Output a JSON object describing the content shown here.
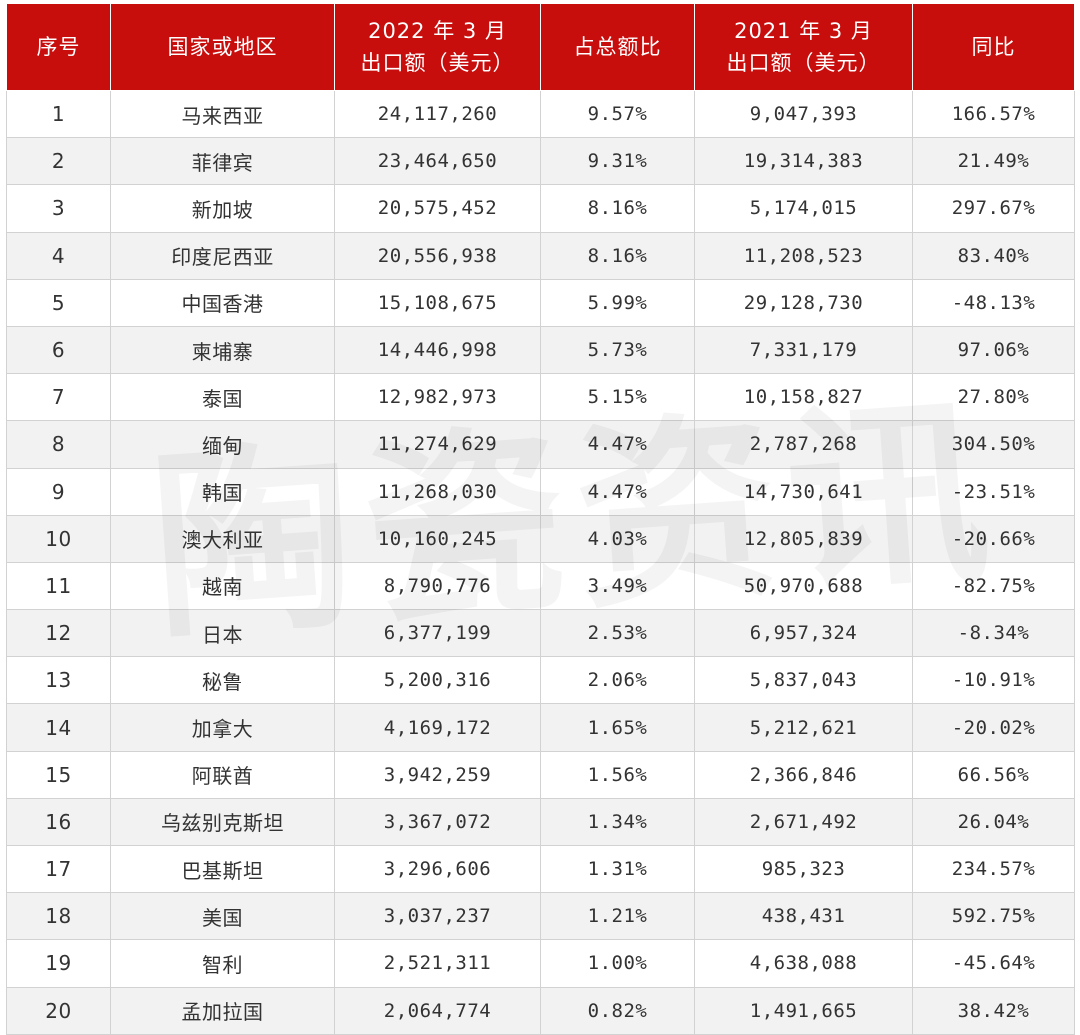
{
  "table": {
    "headers": {
      "rank": "序号",
      "country": "国家或地区",
      "export_2022_line1": "2022 年 3 月",
      "export_2022_line2": "出口额（美元）",
      "share": "占总额比",
      "export_2021_line1": "2021 年 3 月",
      "export_2021_line2": "出口额（美元）",
      "yoy": "同比"
    },
    "rows": [
      {
        "rank": "1",
        "country": "马来西亚",
        "export_2022": "24,117,260",
        "share": "9.57%",
        "export_2021": "9,047,393",
        "yoy": "166.57%"
      },
      {
        "rank": "2",
        "country": "菲律宾",
        "export_2022": "23,464,650",
        "share": "9.31%",
        "export_2021": "19,314,383",
        "yoy": "21.49%"
      },
      {
        "rank": "3",
        "country": "新加坡",
        "export_2022": "20,575,452",
        "share": "8.16%",
        "export_2021": "5,174,015",
        "yoy": "297.67%"
      },
      {
        "rank": "4",
        "country": "印度尼西亚",
        "export_2022": "20,556,938",
        "share": "8.16%",
        "export_2021": "11,208,523",
        "yoy": "83.40%"
      },
      {
        "rank": "5",
        "country": "中国香港",
        "export_2022": "15,108,675",
        "share": "5.99%",
        "export_2021": "29,128,730",
        "yoy": "-48.13%"
      },
      {
        "rank": "6",
        "country": "柬埔寨",
        "export_2022": "14,446,998",
        "share": "5.73%",
        "export_2021": "7,331,179",
        "yoy": "97.06%"
      },
      {
        "rank": "7",
        "country": "泰国",
        "export_2022": "12,982,973",
        "share": "5.15%",
        "export_2021": "10,158,827",
        "yoy": "27.80%"
      },
      {
        "rank": "8",
        "country": "缅甸",
        "export_2022": "11,274,629",
        "share": "4.47%",
        "export_2021": "2,787,268",
        "yoy": "304.50%"
      },
      {
        "rank": "9",
        "country": "韩国",
        "export_2022": "11,268,030",
        "share": "4.47%",
        "export_2021": "14,730,641",
        "yoy": "-23.51%"
      },
      {
        "rank": "10",
        "country": "澳大利亚",
        "export_2022": "10,160,245",
        "share": "4.03%",
        "export_2021": "12,805,839",
        "yoy": "-20.66%"
      },
      {
        "rank": "11",
        "country": "越南",
        "export_2022": "8,790,776",
        "share": "3.49%",
        "export_2021": "50,970,688",
        "yoy": "-82.75%"
      },
      {
        "rank": "12",
        "country": "日本",
        "export_2022": "6,377,199",
        "share": "2.53%",
        "export_2021": "6,957,324",
        "yoy": "-8.34%"
      },
      {
        "rank": "13",
        "country": "秘鲁",
        "export_2022": "5,200,316",
        "share": "2.06%",
        "export_2021": "5,837,043",
        "yoy": "-10.91%"
      },
      {
        "rank": "14",
        "country": "加拿大",
        "export_2022": "4,169,172",
        "share": "1.65%",
        "export_2021": "5,212,621",
        "yoy": "-20.02%"
      },
      {
        "rank": "15",
        "country": "阿联酋",
        "export_2022": "3,942,259",
        "share": "1.56%",
        "export_2021": "2,366,846",
        "yoy": "66.56%"
      },
      {
        "rank": "16",
        "country": "乌兹别克斯坦",
        "export_2022": "3,367,072",
        "share": "1.34%",
        "export_2021": "2,671,492",
        "yoy": "26.04%"
      },
      {
        "rank": "17",
        "country": "巴基斯坦",
        "export_2022": "3,296,606",
        "share": "1.31%",
        "export_2021": "985,323",
        "yoy": "234.57%"
      },
      {
        "rank": "18",
        "country": "美国",
        "export_2022": "3,037,237",
        "share": "1.21%",
        "export_2021": "438,431",
        "yoy": "592.75%"
      },
      {
        "rank": "19",
        "country": "智利",
        "export_2022": "2,521,311",
        "share": "1.00%",
        "export_2021": "4,638,088",
        "yoy": "-45.64%"
      },
      {
        "rank": "20",
        "country": "孟加拉国",
        "export_2022": "2,064,774",
        "share": "0.82%",
        "export_2021": "1,491,665",
        "yoy": "38.42%"
      }
    ]
  },
  "watermark": "陶瓷资讯",
  "colors": {
    "header_bg": "#c80d0d",
    "header_text": "#ffffff",
    "stripe": "#f2f2f2",
    "border": "#d2d2d2"
  }
}
